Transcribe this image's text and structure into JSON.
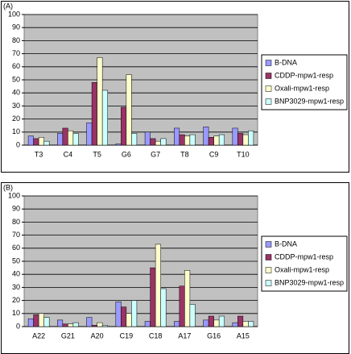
{
  "chart_data": [
    {
      "type": "bar",
      "panel_label": "(A)",
      "categories": [
        "T3",
        "C4",
        "T5",
        "G6",
        "G7",
        "T8",
        "C9",
        "T10"
      ],
      "series": [
        {
          "name": "B-DNA",
          "color": "#9999ff",
          "values": [
            7,
            9,
            17,
            1,
            10,
            13,
            14,
            13
          ]
        },
        {
          "name": "CDDP-mpw1-resp",
          "color": "#993366",
          "values": [
            5,
            13,
            48,
            29,
            5,
            8,
            6,
            9
          ]
        },
        {
          "name": "Oxali-mpw1-resp",
          "color": "#ffffcc",
          "values": [
            6,
            11,
            67,
            54,
            3,
            7,
            7,
            8
          ]
        },
        {
          "name": "BNP3029-mpw1-resp",
          "color": "#ccffff",
          "values": [
            3,
            9,
            42,
            9,
            5,
            8,
            8,
            11
          ]
        }
      ],
      "ylim": [
        0,
        100
      ],
      "yticks": [
        0,
        10,
        20,
        30,
        40,
        50,
        60,
        70,
        80,
        90,
        100
      ],
      "grid": true,
      "legend": "right"
    },
    {
      "type": "bar",
      "panel_label": "(B)",
      "categories": [
        "A22",
        "G21",
        "A20",
        "C19",
        "C18",
        "A17",
        "G16",
        "A15"
      ],
      "series": [
        {
          "name": "B-DNA",
          "color": "#9999ff",
          "values": [
            6,
            5,
            7,
            19,
            4,
            4,
            5,
            3
          ]
        },
        {
          "name": "CDDP-mpw1-resp",
          "color": "#993366",
          "values": [
            9,
            2,
            1,
            15,
            45,
            31,
            8,
            8
          ]
        },
        {
          "name": "Oxali-mpw1-resp",
          "color": "#ffffcc",
          "values": [
            10,
            2,
            3,
            10,
            63,
            43,
            5,
            4
          ]
        },
        {
          "name": "BNP3029-mpw1-resp",
          "color": "#ccffff",
          "values": [
            7,
            3,
            1,
            20,
            29,
            17,
            8,
            4
          ]
        }
      ],
      "ylim": [
        0,
        100
      ],
      "yticks": [
        0,
        10,
        20,
        30,
        40,
        50,
        60,
        70,
        80,
        90,
        100
      ],
      "grid": true,
      "legend": "right"
    }
  ]
}
